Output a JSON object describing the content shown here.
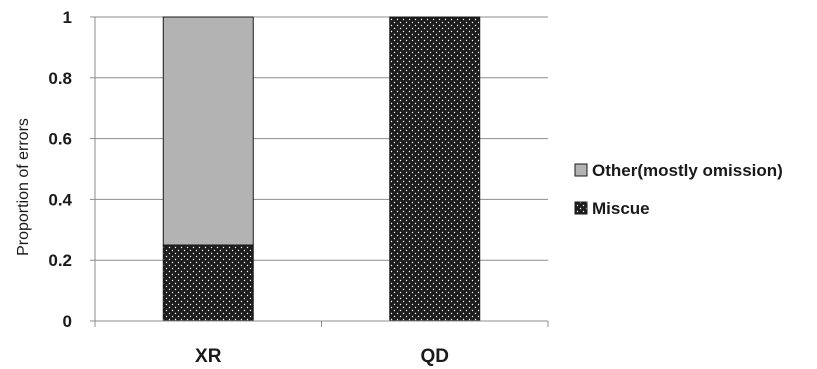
{
  "chart_data": {
    "type": "bar",
    "stacked": true,
    "categories": [
      "XR",
      "QD"
    ],
    "series": [
      {
        "name": "Miscue",
        "values": [
          0.25,
          1.0
        ],
        "color": "#1c1c1c",
        "pattern": "dotted"
      },
      {
        "name": "Other(mostly omission)",
        "values": [
          0.75,
          0.0
        ],
        "color": "#b3b3b3",
        "pattern": "solid"
      }
    ],
    "xlabel": "",
    "ylabel": "Proportion of errors",
    "ylim": [
      0,
      1
    ],
    "yticks": [
      0,
      0.2,
      0.4,
      0.6,
      0.8,
      1
    ],
    "grid": true,
    "legend_position": "right",
    "legend_order": [
      "Other(mostly omission)",
      "Miscue"
    ]
  }
}
